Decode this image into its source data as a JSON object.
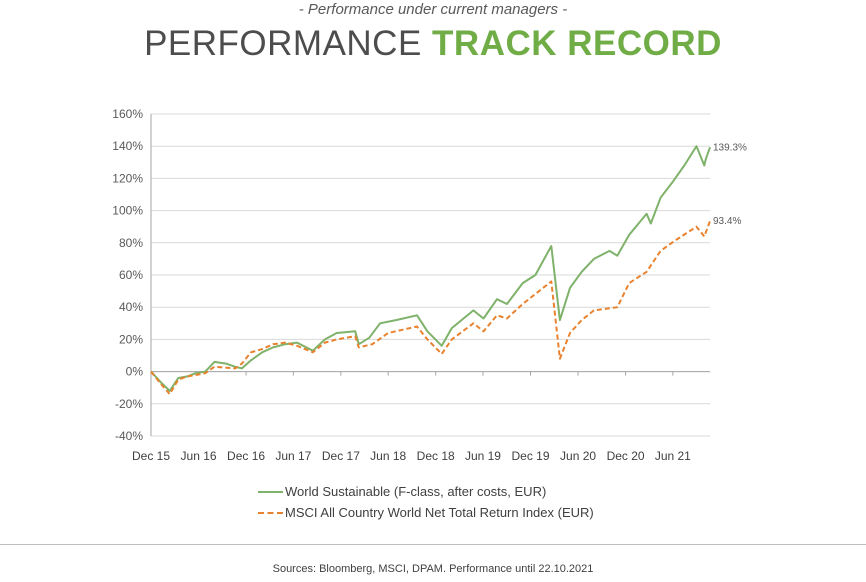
{
  "header": {
    "subtitle": "- Performance under current managers -",
    "title_part1": "PERFORMANCE",
    "title_part2": "TRACK RECORD"
  },
  "footer": {
    "sources": "Sources: Bloomberg, MSCI, DPAM. Performance until 22.10.2021"
  },
  "colors": {
    "accent": "#70ad47",
    "series_world": "#7fb26a",
    "series_msci": "#e8822e",
    "grid": "#d9d9d9"
  },
  "chart_data": {
    "type": "line",
    "title": "",
    "xlabel": "",
    "ylabel": "",
    "y_unit": "%",
    "ylim": [
      -40,
      160
    ],
    "y_ticks": [
      -40,
      -20,
      0,
      20,
      40,
      60,
      80,
      100,
      120,
      140,
      160
    ],
    "y_tick_labels": [
      "-40%",
      "-20%",
      "0%",
      "20%",
      "40%",
      "60%",
      "80%",
      "100%",
      "120%",
      "140%",
      "160%"
    ],
    "x_range": [
      "2015-12-01",
      "2021-10-22"
    ],
    "x_ticks": [
      "2015-12-01",
      "2016-06-01",
      "2016-12-01",
      "2017-06-01",
      "2017-12-01",
      "2018-06-01",
      "2018-12-01",
      "2019-06-01",
      "2019-12-01",
      "2020-06-01",
      "2020-12-01",
      "2021-06-01"
    ],
    "x_tick_labels": [
      "Dec 15",
      "Jun 16",
      "Dec 16",
      "Jun 17",
      "Dec 17",
      "Jun 18",
      "Dec 18",
      "Jun 19",
      "Dec 19",
      "Jun 20",
      "Dec 20",
      "Jun 21"
    ],
    "grid": "horizontal",
    "legend_position": "bottom",
    "series": [
      {
        "name": "World Sustainable (F-class, after costs, EUR)",
        "end_label": "139.3%",
        "points": [
          [
            "2015-12-01",
            0
          ],
          [
            "2016-01-10",
            -7
          ],
          [
            "2016-02-11",
            -12
          ],
          [
            "2016-03-15",
            -4
          ],
          [
            "2016-04-20",
            -3
          ],
          [
            "2016-05-20",
            -1
          ],
          [
            "2016-06-27",
            0
          ],
          [
            "2016-08-01",
            6
          ],
          [
            "2016-09-15",
            5
          ],
          [
            "2016-10-20",
            3
          ],
          [
            "2016-11-15",
            2
          ],
          [
            "2016-12-20",
            7
          ],
          [
            "2017-02-01",
            12
          ],
          [
            "2017-03-15",
            15
          ],
          [
            "2017-05-01",
            17
          ],
          [
            "2017-06-15",
            18
          ],
          [
            "2017-08-15",
            13
          ],
          [
            "2017-10-01",
            20
          ],
          [
            "2017-11-15",
            24
          ],
          [
            "2018-01-25",
            25
          ],
          [
            "2018-02-08",
            17
          ],
          [
            "2018-03-20",
            21
          ],
          [
            "2018-05-01",
            30
          ],
          [
            "2018-07-01",
            32
          ],
          [
            "2018-09-20",
            35
          ],
          [
            "2018-10-30",
            25
          ],
          [
            "2018-12-24",
            16
          ],
          [
            "2019-02-01",
            27
          ],
          [
            "2019-04-25",
            38
          ],
          [
            "2019-06-03",
            33
          ],
          [
            "2019-07-25",
            45
          ],
          [
            "2019-09-01",
            42
          ],
          [
            "2019-11-01",
            55
          ],
          [
            "2019-12-20",
            60
          ],
          [
            "2020-02-19",
            78
          ],
          [
            "2020-03-23",
            32
          ],
          [
            "2020-05-01",
            52
          ],
          [
            "2020-06-15",
            62
          ],
          [
            "2020-08-01",
            70
          ],
          [
            "2020-09-30",
            75
          ],
          [
            "2020-10-30",
            72
          ],
          [
            "2020-12-15",
            85
          ],
          [
            "2021-01-25",
            93
          ],
          [
            "2021-02-20",
            98
          ],
          [
            "2021-03-08",
            92
          ],
          [
            "2021-04-15",
            108
          ],
          [
            "2021-06-01",
            118
          ],
          [
            "2021-07-15",
            128
          ],
          [
            "2021-08-31",
            140
          ],
          [
            "2021-09-30",
            128
          ],
          [
            "2021-10-06",
            132
          ],
          [
            "2021-10-22",
            139.3
          ]
        ]
      },
      {
        "name": "MSCI All Country World Net Total Return Index (EUR)",
        "end_label": "93.4%",
        "points": [
          [
            "2015-12-01",
            0
          ],
          [
            "2016-01-10",
            -8
          ],
          [
            "2016-02-11",
            -14
          ],
          [
            "2016-03-15",
            -5
          ],
          [
            "2016-04-20",
            -3
          ],
          [
            "2016-06-27",
            -1
          ],
          [
            "2016-08-01",
            3
          ],
          [
            "2016-10-20",
            2
          ],
          [
            "2016-11-15",
            5
          ],
          [
            "2016-12-20",
            12
          ],
          [
            "2017-02-01",
            14
          ],
          [
            "2017-03-15",
            17
          ],
          [
            "2017-05-01",
            18
          ],
          [
            "2017-06-15",
            16
          ],
          [
            "2017-08-15",
            12
          ],
          [
            "2017-10-01",
            18
          ],
          [
            "2017-11-15",
            20
          ],
          [
            "2018-01-25",
            22
          ],
          [
            "2018-02-08",
            15
          ],
          [
            "2018-04-01",
            17
          ],
          [
            "2018-06-01",
            24
          ],
          [
            "2018-09-20",
            28
          ],
          [
            "2018-10-30",
            20
          ],
          [
            "2018-12-24",
            11
          ],
          [
            "2019-02-01",
            20
          ],
          [
            "2019-04-25",
            30
          ],
          [
            "2019-06-03",
            25
          ],
          [
            "2019-07-25",
            35
          ],
          [
            "2019-09-01",
            33
          ],
          [
            "2019-11-01",
            42
          ],
          [
            "2020-02-19",
            56
          ],
          [
            "2020-03-23",
            8
          ],
          [
            "2020-05-01",
            24
          ],
          [
            "2020-06-15",
            32
          ],
          [
            "2020-08-01",
            38
          ],
          [
            "2020-10-30",
            40
          ],
          [
            "2020-12-15",
            55
          ],
          [
            "2021-02-20",
            62
          ],
          [
            "2021-04-15",
            75
          ],
          [
            "2021-06-15",
            82
          ],
          [
            "2021-08-31",
            90
          ],
          [
            "2021-09-30",
            84
          ],
          [
            "2021-10-22",
            93.4
          ]
        ]
      }
    ]
  }
}
